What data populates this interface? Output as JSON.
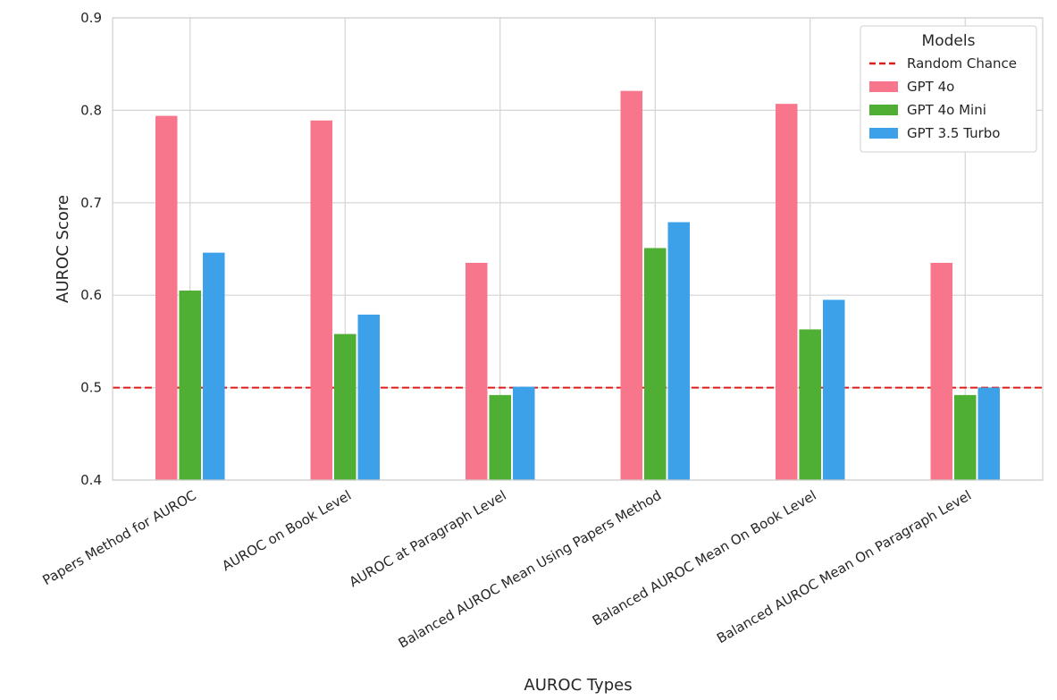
{
  "chart_data": {
    "type": "bar",
    "categories": [
      "Papers Method for AUROC",
      "AUROC on Book Level",
      "AUROC at Paragraph Level",
      "Balanced AUROC Mean Using Papers Method",
      "Balanced AUROC Mean On Book Level",
      "Balanced AUROC Mean On Paragraph Level"
    ],
    "series": [
      {
        "name": "GPT 4o",
        "color": "#f7768b",
        "values": [
          0.794,
          0.789,
          0.635,
          0.821,
          0.807,
          0.635
        ]
      },
      {
        "name": "GPT 4o Mini",
        "color": "#4fae34",
        "values": [
          0.605,
          0.558,
          0.492,
          0.651,
          0.563,
          0.492
        ]
      },
      {
        "name": "GPT 3.5 Turbo",
        "color": "#3ca1e8",
        "values": [
          0.646,
          0.579,
          0.501,
          0.679,
          0.595,
          0.5
        ]
      }
    ],
    "reference_line": {
      "name": "Random Chance",
      "value": 0.5,
      "color": "#dd1c1c",
      "style": "dashed"
    },
    "xlabel": "AUROC Types",
    "ylabel": "AUROC Score",
    "ylim": [
      0.4,
      0.9
    ],
    "yticks": [
      "0.4",
      "0.5",
      "0.6",
      "0.7",
      "0.8",
      "0.9"
    ],
    "yticks_values": [
      0.4,
      0.5,
      0.6,
      0.7,
      0.8,
      0.9
    ],
    "grid": true,
    "legend": {
      "title": "Models",
      "placement": "top-right"
    }
  }
}
